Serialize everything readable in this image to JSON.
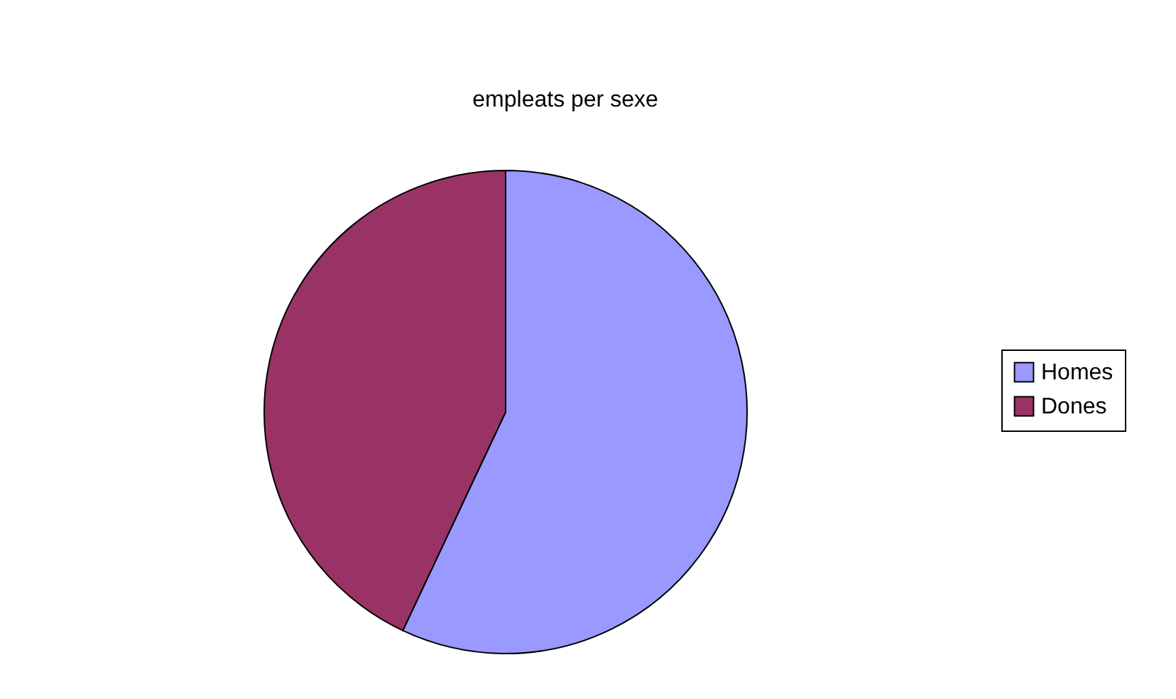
{
  "chart_data": {
    "type": "pie",
    "title": "empleats per sexe",
    "categories": [
      "Homes",
      "Dones"
    ],
    "values": [
      57,
      43
    ],
    "colors": [
      "#9999ff",
      "#993366"
    ],
    "legend": "right"
  }
}
